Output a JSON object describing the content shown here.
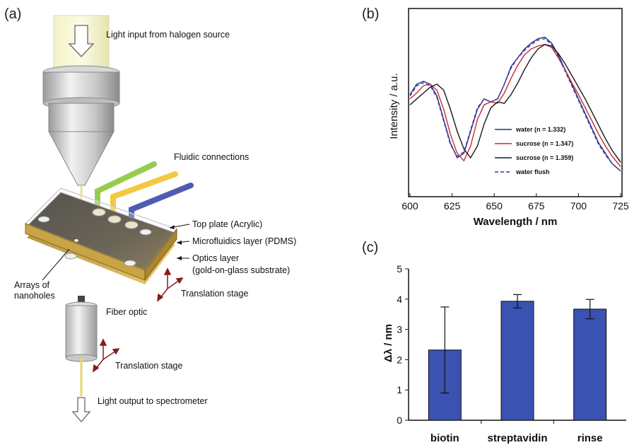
{
  "panels": {
    "a": "(a)",
    "b": "(b)",
    "c": "(c)"
  },
  "diagram": {
    "light_input": "Light input from halogen source",
    "fluidic_connections": "Fluidic connections",
    "top_plate": "Top plate  (Acrylic)",
    "microfluidics_layer": "Microfluidics layer  (PDMS)",
    "optics_layer_1": "Optics layer",
    "optics_layer_2": "(gold-on-glass substrate)",
    "arrays_1": "Arrays of",
    "arrays_2": "nanoholes",
    "translation_stage_1": "Translation stage",
    "fiber_optic": "Fiber optic",
    "translation_stage_2": "Translation stage",
    "light_output": "Light output to spectrometer",
    "colors": {
      "tube_green": "#8cc63f",
      "tube_yellow": "#f2c22e",
      "tube_blue": "#3a4aa8",
      "arrow_red": "#8b1a1a"
    }
  },
  "chart_data": [
    {
      "type": "line",
      "panel": "b",
      "xlabel": "Wavelength / nm",
      "ylabel": "Intensity / a.u.",
      "xlim": [
        600,
        725
      ],
      "xticks": [
        "600",
        "625",
        "650",
        "675",
        "700",
        "725"
      ],
      "legend_position": "lower-right",
      "series": [
        {
          "name": "water (n = 1.332)",
          "color": "#2b2b8f",
          "dash": false,
          "x": [
            600,
            604,
            608,
            612,
            616,
            620,
            624,
            628,
            632,
            636,
            640,
            644,
            648,
            652,
            656,
            660,
            664,
            668,
            672,
            676,
            680,
            684,
            688,
            692,
            696,
            700,
            704,
            708,
            712,
            716,
            720,
            725
          ],
          "y": [
            0.55,
            0.62,
            0.64,
            0.62,
            0.54,
            0.38,
            0.22,
            0.12,
            0.15,
            0.3,
            0.45,
            0.52,
            0.5,
            0.52,
            0.62,
            0.74,
            0.8,
            0.86,
            0.9,
            0.93,
            0.94,
            0.9,
            0.82,
            0.72,
            0.62,
            0.52,
            0.42,
            0.32,
            0.22,
            0.15,
            0.08,
            0.03
          ]
        },
        {
          "name": "sucrose (n = 1.347)",
          "color": "#cc2a2a",
          "dash": false,
          "x": [
            600,
            604,
            608,
            612,
            616,
            620,
            624,
            628,
            632,
            636,
            640,
            644,
            648,
            652,
            656,
            660,
            664,
            668,
            672,
            676,
            680,
            684,
            688,
            692,
            696,
            700,
            704,
            708,
            712,
            716,
            720,
            725
          ],
          "y": [
            0.52,
            0.56,
            0.61,
            0.62,
            0.58,
            0.45,
            0.28,
            0.15,
            0.1,
            0.2,
            0.38,
            0.48,
            0.5,
            0.49,
            0.56,
            0.66,
            0.75,
            0.82,
            0.86,
            0.88,
            0.89,
            0.87,
            0.8,
            0.72,
            0.63,
            0.55,
            0.46,
            0.37,
            0.28,
            0.2,
            0.13,
            0.06
          ]
        },
        {
          "name": "sucrose (n = 1.359)",
          "color": "#1a1a1a",
          "dash": false,
          "x": [
            600,
            604,
            608,
            612,
            616,
            620,
            624,
            628,
            632,
            636,
            640,
            644,
            648,
            652,
            656,
            660,
            664,
            668,
            672,
            676,
            680,
            684,
            688,
            692,
            696,
            700,
            704,
            708,
            712,
            716,
            720,
            725
          ],
          "y": [
            0.48,
            0.52,
            0.56,
            0.6,
            0.62,
            0.58,
            0.45,
            0.3,
            0.18,
            0.12,
            0.2,
            0.35,
            0.46,
            0.5,
            0.49,
            0.55,
            0.63,
            0.72,
            0.8,
            0.86,
            0.89,
            0.88,
            0.83,
            0.76,
            0.68,
            0.6,
            0.52,
            0.43,
            0.34,
            0.25,
            0.17,
            0.09
          ]
        },
        {
          "name": "water flush",
          "color": "#3a3a9a",
          "dash": true,
          "x": [
            600,
            604,
            608,
            612,
            616,
            620,
            624,
            628,
            632,
            636,
            640,
            644,
            648,
            652,
            656,
            660,
            664,
            668,
            672,
            676,
            680,
            684,
            688,
            692,
            696,
            700,
            704,
            708,
            712,
            716,
            720,
            725
          ],
          "y": [
            0.54,
            0.61,
            0.63,
            0.61,
            0.53,
            0.37,
            0.21,
            0.13,
            0.16,
            0.31,
            0.46,
            0.52,
            0.5,
            0.52,
            0.62,
            0.73,
            0.8,
            0.85,
            0.89,
            0.92,
            0.93,
            0.89,
            0.81,
            0.71,
            0.61,
            0.51,
            0.41,
            0.31,
            0.21,
            0.14,
            0.08,
            0.03
          ]
        }
      ]
    },
    {
      "type": "bar",
      "panel": "c",
      "ylabel": "Δλ / nm",
      "ylim": [
        0,
        5
      ],
      "yticks": [
        "0",
        "1",
        "2",
        "3",
        "4",
        "5"
      ],
      "categories": [
        "biotin",
        "streptavidin",
        "rinse"
      ],
      "values": [
        2.32,
        3.93,
        3.67
      ],
      "errors": [
        1.42,
        0.22,
        0.32
      ],
      "bar_color": "#3a52b0"
    }
  ]
}
